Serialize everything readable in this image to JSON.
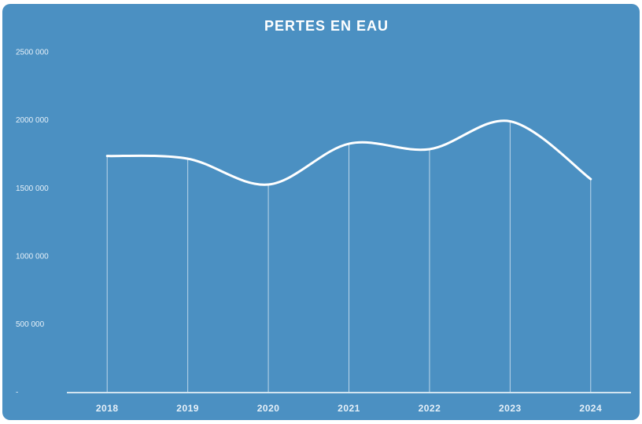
{
  "chart_data": {
    "type": "line",
    "title": "PERTES EN EAU",
    "categories": [
      "2018",
      "2019",
      "2020",
      "2021",
      "2022",
      "2023",
      "2024"
    ],
    "values": [
      1740000,
      1720000,
      1530000,
      1830000,
      1790000,
      1995000,
      1570000
    ],
    "color": "#ffffff",
    "ylim": [
      0,
      2500000
    ],
    "yticks": [
      {
        "value": 0,
        "label": "-"
      },
      {
        "value": 500000,
        "label": "500 000"
      },
      {
        "value": 1000000,
        "label": "1000 000"
      },
      {
        "value": 1500000,
        "label": "1500 000"
      },
      {
        "value": 2000000,
        "label": "2000 000"
      },
      {
        "value": 2500000,
        "label": "2500 000"
      }
    ],
    "smooth": true,
    "drop_lines": true
  }
}
